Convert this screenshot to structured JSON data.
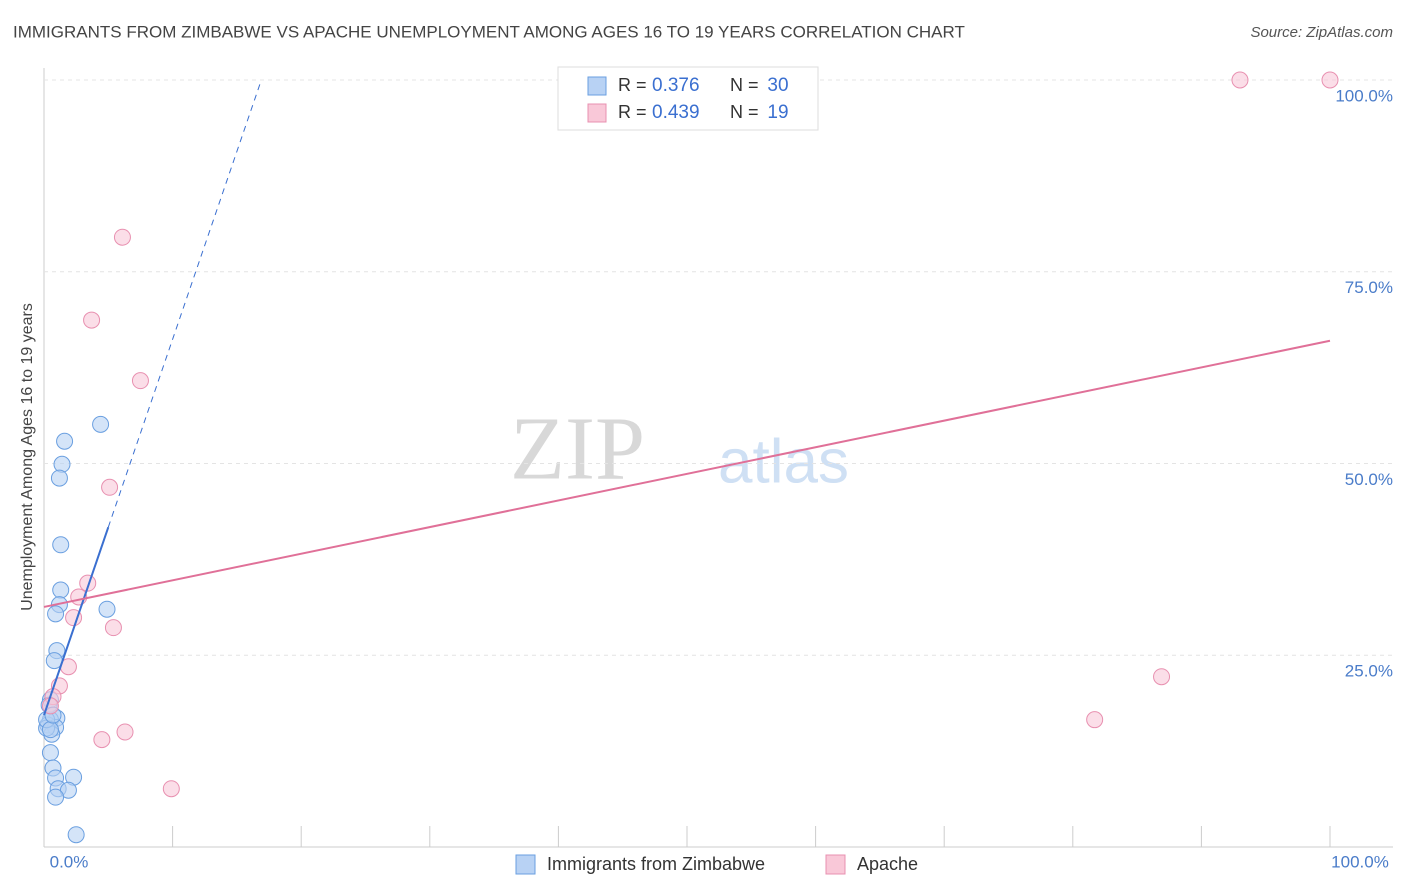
{
  "chart_data": {
    "type": "scatter",
    "title": "IMMIGRANTS FROM ZIMBABWE VS APACHE UNEMPLOYMENT AMONG AGES 16 TO 19 YEARS CORRELATION CHART",
    "source": "Source: ZipAtlas.com",
    "y_label": "Unemployment Among Ages 16 to 19 years",
    "watermark": [
      "ZIP",
      "atlas"
    ],
    "stat_labels": [
      "R =",
      "N ="
    ],
    "xlim": [
      0,
      100
    ],
    "ylim": [
      0,
      100
    ],
    "xticks": [
      {
        "value": 0,
        "label": "0.0%"
      },
      {
        "value": 100,
        "label": "100.0%"
      }
    ],
    "xtick_marks": [
      0,
      10,
      20,
      30,
      40,
      50,
      60,
      70,
      80,
      90,
      100
    ],
    "yticks": [
      {
        "value": 25,
        "label": "25.0%"
      },
      {
        "value": 50,
        "label": "50.0%"
      },
      {
        "value": 75,
        "label": "75.0%"
      },
      {
        "value": 100,
        "label": "100.0%"
      }
    ],
    "grid": true,
    "series": [
      {
        "name": "Immigrants from Zimbabwe",
        "color": "#6a9fe0",
        "fill": "#b8d2f4",
        "line_color": "#3a6fd0",
        "r": 0.376,
        "n": 30,
        "x": [
          4.4,
          1.6,
          1.4,
          1.2,
          1.3,
          1.3,
          1.2,
          0.9,
          4.9,
          1.0,
          0.8,
          0.5,
          1.0,
          0.5,
          0.3,
          0.9,
          0.6,
          0.2,
          0.5,
          0.7,
          0.9,
          2.3,
          1.1,
          1.9,
          0.9,
          2.5,
          0.2,
          0.5,
          0.4,
          0.7
        ],
        "values": [
          55.1,
          52.9,
          49.9,
          48.1,
          39.4,
          33.5,
          31.6,
          30.4,
          31.0,
          25.6,
          24.3,
          19.2,
          16.8,
          16.6,
          15.9,
          15.6,
          14.7,
          15.5,
          12.3,
          10.3,
          9.0,
          9.1,
          7.6,
          7.4,
          6.5,
          1.6,
          16.6,
          15.3,
          18.5,
          17.2
        ],
        "trend": {
          "x": [
            0,
            5
          ],
          "y": [
            17.2,
            41.7
          ]
        },
        "trend_extension": {
          "x": [
            5,
            16.9
          ],
          "y": [
            41.7,
            100
          ]
        }
      },
      {
        "name": "Apache",
        "color": "#e890b0",
        "fill": "#f9c8d8",
        "line_color": "#e07098",
        "r": 0.439,
        "n": 19,
        "x": [
          93.0,
          100,
          6.1,
          3.7,
          7.5,
          5.1,
          3.4,
          2.7,
          2.3,
          5.4,
          1.9,
          1.2,
          0.7,
          0.5,
          86.9,
          81.7,
          6.3,
          4.5,
          9.9
        ],
        "values": [
          100,
          100,
          79.5,
          68.7,
          60.8,
          46.9,
          34.4,
          32.6,
          29.9,
          28.6,
          23.5,
          21.0,
          19.6,
          18.4,
          22.2,
          16.6,
          15.0,
          14.0,
          7.6
        ],
        "trend": {
          "x": [
            0,
            100
          ],
          "y": [
            31.3,
            66.0
          ]
        }
      }
    ]
  }
}
